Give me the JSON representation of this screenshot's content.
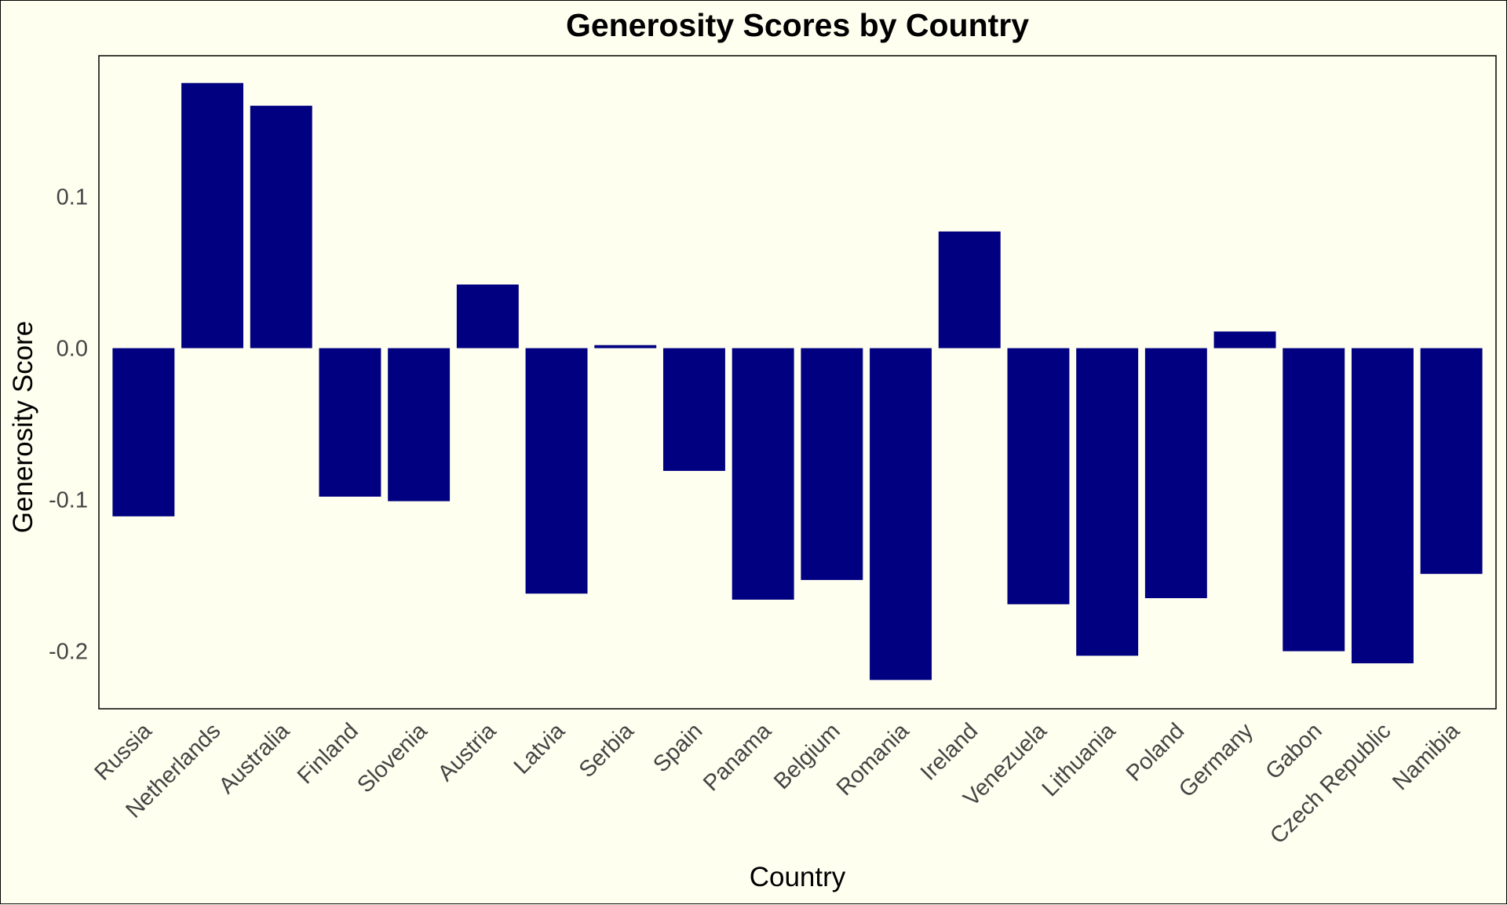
{
  "chart_data": {
    "type": "bar",
    "title": "Generosity Scores by Country",
    "xlabel": "Country",
    "ylabel": "Generosity Score",
    "categories": [
      "Russia",
      "Netherlands",
      "Australia",
      "Finland",
      "Slovenia",
      "Austria",
      "Latvia",
      "Serbia",
      "Spain",
      "Panama",
      "Belgium",
      "Romania",
      "Ireland",
      "Venezuela",
      "Lithuania",
      "Poland",
      "Germany",
      "Gabon",
      "Czech Republic",
      "Namibia"
    ],
    "values": [
      -0.111,
      0.175,
      0.16,
      -0.098,
      -0.101,
      0.042,
      -0.162,
      0.002,
      -0.081,
      -0.166,
      -0.153,
      -0.219,
      0.077,
      -0.169,
      -0.203,
      -0.165,
      0.011,
      -0.2,
      -0.208,
      -0.149
    ],
    "yticks": [
      0.1,
      0.0,
      -0.1,
      -0.2
    ],
    "ytick_labels": [
      "0.1",
      "0.0",
      "-0.1",
      "-0.2"
    ],
    "ylim": [
      -0.238,
      0.193
    ],
    "bar_color": "#000080",
    "background_color": "#fffff0",
    "grid": false,
    "legend": "none"
  }
}
